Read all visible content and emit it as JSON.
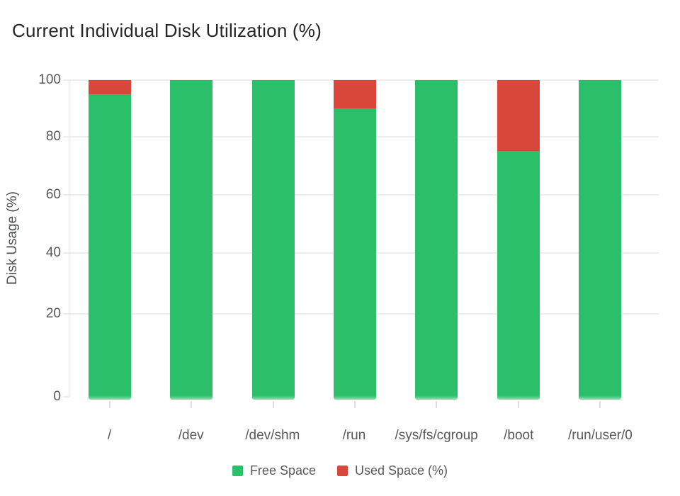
{
  "title": "Current Individual Disk Utilization (%)",
  "colors": {
    "free": "#2abf68",
    "used": "#d9463a",
    "grid": "#ededed",
    "axis": "#e2e5e6",
    "text": "#56585a",
    "title_text": "#262626"
  },
  "y_axis": {
    "label": "Disk Usage (%)",
    "ticks": [
      100,
      80,
      60,
      40,
      20,
      0
    ]
  },
  "chart_data": {
    "type": "bar",
    "stacked": true,
    "title": "Current Individual Disk Utilization (%)",
    "xlabel": "",
    "ylabel": "Disk Usage (%)",
    "ylim": [
      0,
      100
    ],
    "y_ticks": [
      100,
      80,
      60,
      40,
      20,
      0
    ],
    "grid": true,
    "legend_position": "bottom",
    "categories": [
      "/",
      "/dev",
      "/dev/shm",
      "/run",
      "/sys/fs/cgroup",
      "/boot",
      "/run/user/0"
    ],
    "series": [
      {
        "name": "Free Space",
        "color_key": "free",
        "values": [
          95,
          100,
          100,
          90,
          100,
          75,
          100
        ]
      },
      {
        "name": "Used Space (%)",
        "color_key": "used",
        "values": [
          5,
          0,
          0,
          10,
          0,
          25,
          0
        ]
      }
    ]
  },
  "legend": {
    "items": [
      {
        "label": "Free Space",
        "color_key": "free"
      },
      {
        "label": "Used Space (%)",
        "color_key": "used"
      }
    ]
  }
}
